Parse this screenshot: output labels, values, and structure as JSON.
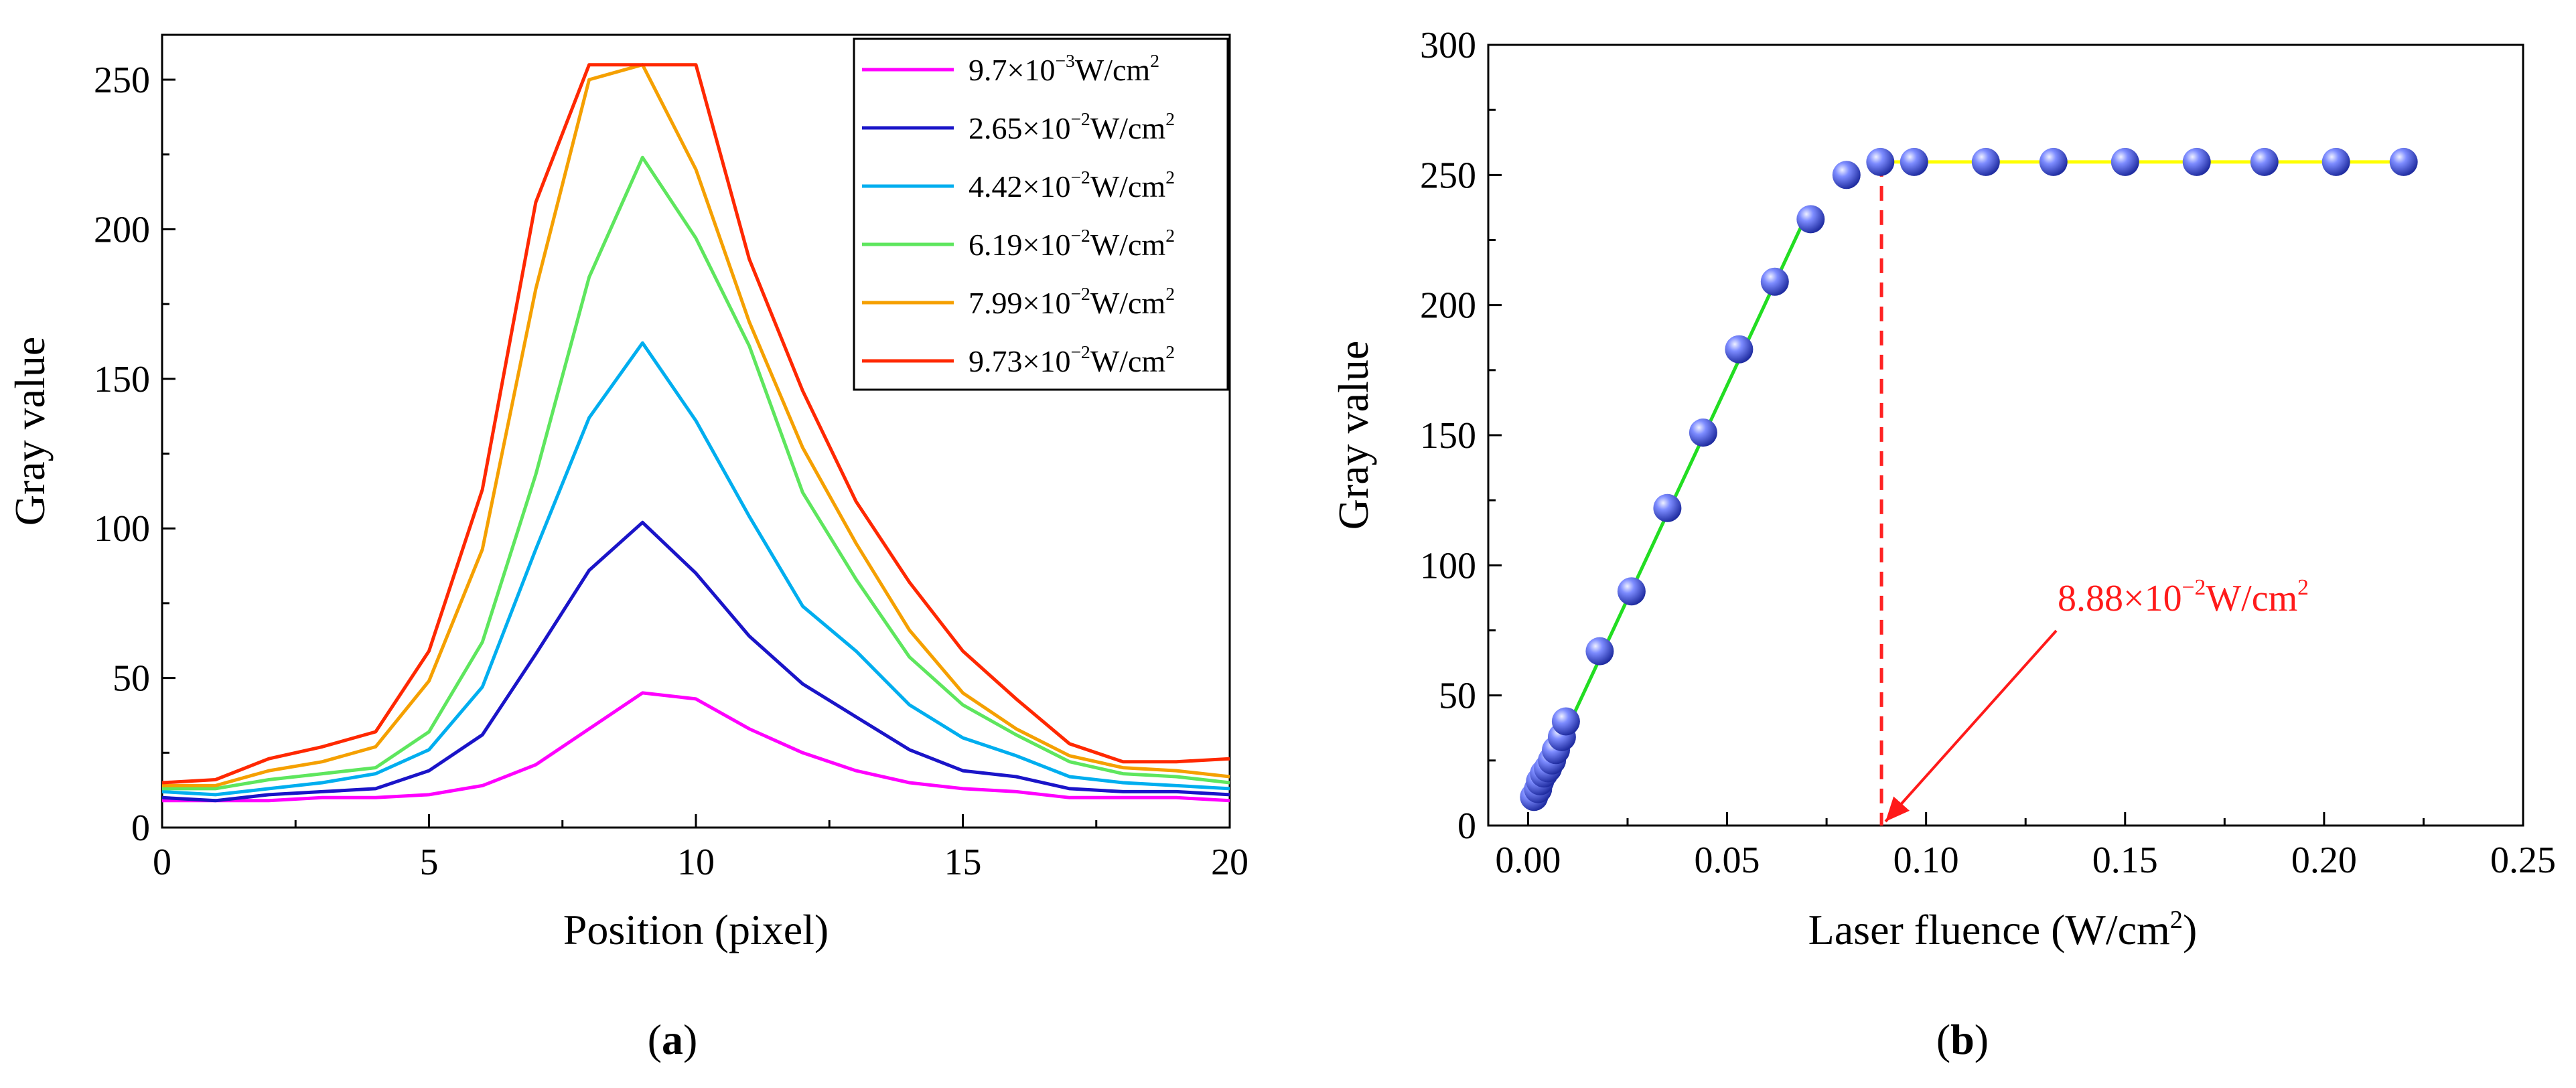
{
  "chart_data": [
    {
      "type": "line",
      "panel": "(a)",
      "panel_label_prefix": "(",
      "panel_label_letter": "a",
      "panel_label_suffix": ")",
      "xlabel": "Position (pixel)",
      "ylabel": "Gray value",
      "xlim": [
        0,
        20
      ],
      "ylim": [
        0,
        265
      ],
      "xticks": [
        "0",
        "5",
        "10",
        "15",
        "20"
      ],
      "yticks": [
        "0",
        "50",
        "100",
        "150",
        "200",
        "250"
      ],
      "legend_position": "top-right",
      "x": [
        0,
        1,
        2,
        3,
        4,
        5,
        6,
        7,
        8,
        9,
        10,
        11,
        12,
        13,
        14,
        15,
        16,
        17,
        18,
        19,
        20
      ],
      "series": [
        {
          "name": "9.7×10⁻³W/cm²",
          "color": "#ff00ff",
          "mant": "9.7×10",
          "exp": "−3",
          "unit": "W/cm",
          "unit_exp": "2",
          "values": [
            9,
            9,
            9,
            10,
            10,
            11,
            14,
            21,
            33,
            45,
            43,
            33,
            25,
            19,
            15,
            13,
            12,
            10,
            10,
            10,
            9
          ]
        },
        {
          "name": "2.65×10⁻²W/cm²",
          "color": "#1a14c8",
          "mant": "2.65×10",
          "exp": "−2",
          "unit": "W/cm",
          "unit_exp": "2",
          "values": [
            10,
            9,
            11,
            12,
            13,
            19,
            31,
            58,
            86,
            102,
            85,
            64,
            48,
            37,
            26,
            19,
            17,
            13,
            12,
            12,
            11
          ]
        },
        {
          "name": "4.42×10⁻²W/cm²",
          "color": "#00aeef",
          "mant": "4.42×10",
          "exp": "−2",
          "unit": "W/cm",
          "unit_exp": "2",
          "values": [
            12,
            11,
            13,
            15,
            18,
            26,
            47,
            93,
            137,
            162,
            136,
            104,
            74,
            59,
            41,
            30,
            24,
            17,
            15,
            14,
            13
          ]
        },
        {
          "name": "6.19×10⁻²W/cm²",
          "color": "#5ee65e",
          "mant": "6.19×10",
          "exp": "−2",
          "unit": "W/cm",
          "unit_exp": "2",
          "values": [
            13,
            13,
            16,
            18,
            20,
            32,
            62,
            118,
            184,
            224,
            197,
            161,
            112,
            83,
            57,
            41,
            31,
            22,
            18,
            17,
            15
          ]
        },
        {
          "name": "7.99×10⁻²W/cm²",
          "color": "#f5a000",
          "mant": "7.99×10",
          "exp": "−2",
          "unit": "W/cm",
          "unit_exp": "2",
          "values": [
            14,
            14,
            19,
            22,
            27,
            49,
            93,
            180,
            250,
            255,
            220,
            169,
            127,
            95,
            66,
            45,
            33,
            24,
            20,
            19,
            17
          ]
        },
        {
          "name": "9.73×10⁻²W/cm²",
          "color": "#ff2800",
          "mant": "9.73×10",
          "exp": "−2",
          "unit": "W/cm",
          "unit_exp": "2",
          "values": [
            15,
            16,
            23,
            27,
            32,
            59,
            113,
            209,
            255,
            255,
            255,
            190,
            146,
            109,
            82,
            59,
            43,
            28,
            22,
            22,
            23
          ]
        }
      ]
    },
    {
      "type": "scatter",
      "panel": "(b)",
      "panel_label_prefix": "(",
      "panel_label_letter": "b",
      "panel_label_suffix": ")",
      "xlabel_main": "Laser fluence (W/cm",
      "xlabel_sup": "2",
      "xlabel_end": ")",
      "ylabel": "Gray value",
      "xlim": [
        -0.01,
        0.25
      ],
      "ylim": [
        0,
        300
      ],
      "xticks": [
        "0.00",
        "0.05",
        "0.10",
        "0.15",
        "0.20",
        "0.25"
      ],
      "yticks": [
        "0",
        "50",
        "100",
        "150",
        "200",
        "250",
        "300"
      ],
      "point_color": "#4a5cf0",
      "x": [
        0.0015,
        0.0025,
        0.003,
        0.004,
        0.005,
        0.006,
        0.007,
        0.0085,
        0.0095,
        0.018,
        0.026,
        0.035,
        0.044,
        0.053,
        0.062,
        0.071,
        0.08,
        0.0885,
        0.097,
        0.115,
        0.132,
        0.15,
        0.168,
        0.185,
        0.203,
        0.22
      ],
      "y": [
        11,
        14,
        17,
        20,
        22,
        25,
        29,
        34,
        40,
        67,
        90,
        122,
        151,
        183,
        209,
        233,
        250,
        255,
        255,
        255,
        255,
        255,
        255,
        255,
        255,
        255
      ],
      "fit_lines": [
        {
          "name": "linear-fit",
          "color": "#22dd22",
          "x": [
            0.0015,
            0.071
          ],
          "y": [
            10,
            238
          ]
        },
        {
          "name": "saturation-fit",
          "color": "#ffff00",
          "x": [
            0.088,
            0.222
          ],
          "y": [
            255,
            255
          ]
        }
      ],
      "threshold": {
        "x": 0.0888,
        "y_from": 0,
        "y_to": 255,
        "color": "#ff2222"
      },
      "annotation": {
        "mant": "8.88×10",
        "exp": "−2",
        "unit": "W/cm",
        "unit_exp": "2",
        "color": "#ff1a1a",
        "arrow_target_x": 0.0888,
        "arrow_target_y": 0
      }
    }
  ]
}
